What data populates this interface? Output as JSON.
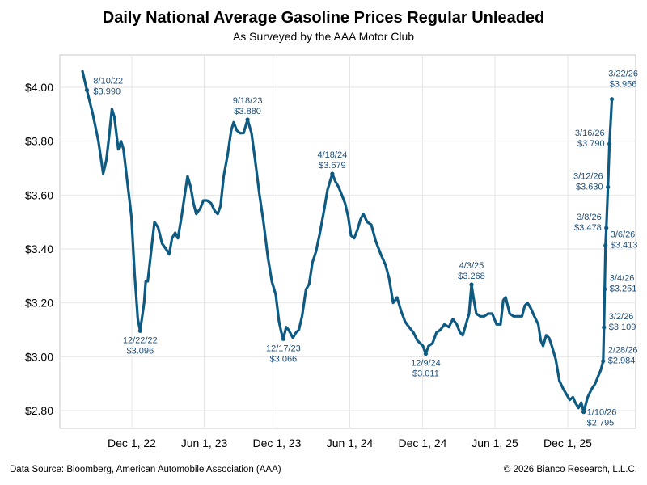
{
  "chart_data": {
    "type": "line",
    "title": "Daily National Average Gasoline Prices Regular Unleaded",
    "subtitle": "As Surveyed by the AAA Motor Club",
    "xlabel": "",
    "ylabel": "",
    "ylim": [
      2.75,
      4.1
    ],
    "grid": true,
    "legend": "none",
    "line_color": "#0d5a82",
    "annotation_color": "#1f4e79",
    "y_ticks": [
      {
        "value": 2.8,
        "label": "$2.80"
      },
      {
        "value": 3.0,
        "label": "$3.00"
      },
      {
        "value": 3.2,
        "label": "$3.20"
      },
      {
        "value": 3.4,
        "label": "$3.40"
      },
      {
        "value": 3.6,
        "label": "$3.60"
      },
      {
        "value": 3.8,
        "label": "$3.80"
      },
      {
        "value": 4.0,
        "label": "$4.00"
      }
    ],
    "x_ticks": [
      {
        "date": "2022-12-01",
        "label": "Dec 1, 22"
      },
      {
        "date": "2023-06-01",
        "label": "Jun 1, 23"
      },
      {
        "date": "2023-12-01",
        "label": "Dec 1, 23"
      },
      {
        "date": "2024-06-01",
        "label": "Jun 1, 24"
      },
      {
        "date": "2024-12-01",
        "label": "Dec 1, 24"
      },
      {
        "date": "2025-06-01",
        "label": "Jun 1, 25"
      },
      {
        "date": "2025-12-01",
        "label": "Dec 1, 25"
      }
    ],
    "series": [
      {
        "points": [
          [
            "2022-07-30",
            4.06
          ],
          [
            "2022-08-10",
            3.99
          ],
          [
            "2022-08-25",
            3.9
          ],
          [
            "2022-09-08",
            3.8
          ],
          [
            "2022-09-20",
            3.68
          ],
          [
            "2022-09-28",
            3.73
          ],
          [
            "2022-10-05",
            3.82
          ],
          [
            "2022-10-12",
            3.92
          ],
          [
            "2022-10-18",
            3.89
          ],
          [
            "2022-10-28",
            3.77
          ],
          [
            "2022-11-04",
            3.8
          ],
          [
            "2022-11-10",
            3.77
          ],
          [
            "2022-11-22",
            3.62
          ],
          [
            "2022-11-30",
            3.52
          ],
          [
            "2022-12-08",
            3.31
          ],
          [
            "2022-12-16",
            3.14
          ],
          [
            "2022-12-22",
            3.096
          ],
          [
            "2023-01-01",
            3.2
          ],
          [
            "2023-01-05",
            3.28
          ],
          [
            "2023-01-10",
            3.28
          ],
          [
            "2023-01-20",
            3.41
          ],
          [
            "2023-01-27",
            3.5
          ],
          [
            "2023-02-05",
            3.48
          ],
          [
            "2023-02-15",
            3.42
          ],
          [
            "2023-02-25",
            3.4
          ],
          [
            "2023-03-05",
            3.38
          ],
          [
            "2023-03-12",
            3.44
          ],
          [
            "2023-03-20",
            3.46
          ],
          [
            "2023-03-27",
            3.44
          ],
          [
            "2023-04-05",
            3.52
          ],
          [
            "2023-04-13",
            3.6
          ],
          [
            "2023-04-20",
            3.67
          ],
          [
            "2023-04-28",
            3.63
          ],
          [
            "2023-05-05",
            3.57
          ],
          [
            "2023-05-12",
            3.53
          ],
          [
            "2023-05-22",
            3.55
          ],
          [
            "2023-05-30",
            3.58
          ],
          [
            "2023-06-08",
            3.58
          ],
          [
            "2023-06-18",
            3.57
          ],
          [
            "2023-06-28",
            3.54
          ],
          [
            "2023-07-05",
            3.53
          ],
          [
            "2023-07-12",
            3.56
          ],
          [
            "2023-07-20",
            3.67
          ],
          [
            "2023-07-30",
            3.75
          ],
          [
            "2023-08-08",
            3.84
          ],
          [
            "2023-08-14",
            3.87
          ],
          [
            "2023-08-22",
            3.84
          ],
          [
            "2023-08-30",
            3.83
          ],
          [
            "2023-09-08",
            3.83
          ],
          [
            "2023-09-18",
            3.88
          ],
          [
            "2023-09-28",
            3.83
          ],
          [
            "2023-10-08",
            3.72
          ],
          [
            "2023-10-18",
            3.6
          ],
          [
            "2023-10-28",
            3.5
          ],
          [
            "2023-11-08",
            3.37
          ],
          [
            "2023-11-18",
            3.28
          ],
          [
            "2023-11-28",
            3.23
          ],
          [
            "2023-12-06",
            3.13
          ],
          [
            "2023-12-12",
            3.09
          ],
          [
            "2023-12-17",
            3.066
          ],
          [
            "2023-12-24",
            3.11
          ],
          [
            "2023-12-30",
            3.1
          ],
          [
            "2024-01-10",
            3.07
          ],
          [
            "2024-01-18",
            3.09
          ],
          [
            "2024-01-25",
            3.1
          ],
          [
            "2024-02-02",
            3.15
          ],
          [
            "2024-02-12",
            3.25
          ],
          [
            "2024-02-20",
            3.27
          ],
          [
            "2024-02-28",
            3.35
          ],
          [
            "2024-03-08",
            3.39
          ],
          [
            "2024-03-18",
            3.46
          ],
          [
            "2024-03-28",
            3.54
          ],
          [
            "2024-04-06",
            3.62
          ],
          [
            "2024-04-18",
            3.679
          ],
          [
            "2024-04-26",
            3.65
          ],
          [
            "2024-05-04",
            3.63
          ],
          [
            "2024-05-12",
            3.6
          ],
          [
            "2024-05-20",
            3.57
          ],
          [
            "2024-05-28",
            3.52
          ],
          [
            "2024-06-04",
            3.45
          ],
          [
            "2024-06-12",
            3.44
          ],
          [
            "2024-06-20",
            3.47
          ],
          [
            "2024-06-28",
            3.51
          ],
          [
            "2024-07-05",
            3.53
          ],
          [
            "2024-07-15",
            3.5
          ],
          [
            "2024-07-25",
            3.49
          ],
          [
            "2024-08-05",
            3.43
          ],
          [
            "2024-08-18",
            3.38
          ],
          [
            "2024-08-30",
            3.34
          ],
          [
            "2024-09-08",
            3.29
          ],
          [
            "2024-09-18",
            3.2
          ],
          [
            "2024-09-28",
            3.22
          ],
          [
            "2024-10-08",
            3.17
          ],
          [
            "2024-10-18",
            3.13
          ],
          [
            "2024-10-28",
            3.11
          ],
          [
            "2024-11-08",
            3.09
          ],
          [
            "2024-11-18",
            3.06
          ],
          [
            "2024-11-25",
            3.05
          ],
          [
            "2024-12-02",
            3.04
          ],
          [
            "2024-12-09",
            3.011
          ],
          [
            "2024-12-16",
            3.04
          ],
          [
            "2024-12-26",
            3.05
          ],
          [
            "2025-01-05",
            3.09
          ],
          [
            "2025-01-15",
            3.1
          ],
          [
            "2025-01-25",
            3.12
          ],
          [
            "2025-02-05",
            3.11
          ],
          [
            "2025-02-15",
            3.14
          ],
          [
            "2025-02-25",
            3.12
          ],
          [
            "2025-03-05",
            3.09
          ],
          [
            "2025-03-12",
            3.08
          ],
          [
            "2025-03-20",
            3.12
          ],
          [
            "2025-03-28",
            3.16
          ],
          [
            "2025-04-03",
            3.268
          ],
          [
            "2025-04-08",
            3.22
          ],
          [
            "2025-04-15",
            3.16
          ],
          [
            "2025-04-25",
            3.15
          ],
          [
            "2025-05-05",
            3.15
          ],
          [
            "2025-05-15",
            3.16
          ],
          [
            "2025-05-25",
            3.16
          ],
          [
            "2025-06-05",
            3.12
          ],
          [
            "2025-06-15",
            3.12
          ],
          [
            "2025-06-22",
            3.21
          ],
          [
            "2025-06-28",
            3.22
          ],
          [
            "2025-07-08",
            3.16
          ],
          [
            "2025-07-18",
            3.15
          ],
          [
            "2025-07-28",
            3.15
          ],
          [
            "2025-08-08",
            3.15
          ],
          [
            "2025-08-15",
            3.19
          ],
          [
            "2025-08-22",
            3.2
          ],
          [
            "2025-08-30",
            3.18
          ],
          [
            "2025-09-08",
            3.15
          ],
          [
            "2025-09-18",
            3.12
          ],
          [
            "2025-09-24",
            3.06
          ],
          [
            "2025-09-30",
            3.04
          ],
          [
            "2025-10-08",
            3.08
          ],
          [
            "2025-10-15",
            3.07
          ],
          [
            "2025-10-22",
            3.04
          ],
          [
            "2025-11-01",
            2.99
          ],
          [
            "2025-11-10",
            2.91
          ],
          [
            "2025-11-20",
            2.88
          ],
          [
            "2025-11-28",
            2.86
          ],
          [
            "2025-12-06",
            2.84
          ],
          [
            "2025-12-14",
            2.85
          ],
          [
            "2025-12-20",
            2.83
          ],
          [
            "2025-12-28",
            2.81
          ],
          [
            "2026-01-04",
            2.83
          ],
          [
            "2026-01-10",
            2.795
          ],
          [
            "2026-01-20",
            2.85
          ],
          [
            "2026-01-30",
            2.88
          ],
          [
            "2026-02-08",
            2.9
          ],
          [
            "2026-02-16",
            2.93
          ],
          [
            "2026-02-22",
            2.95
          ],
          [
            "2026-02-28",
            2.984
          ],
          [
            "2026-03-02",
            3.109
          ],
          [
            "2026-03-04",
            3.251
          ],
          [
            "2026-03-06",
            3.413
          ],
          [
            "2026-03-08",
            3.478
          ],
          [
            "2026-03-12",
            3.63
          ],
          [
            "2026-03-16",
            3.79
          ],
          [
            "2026-03-22",
            3.956
          ]
        ]
      }
    ],
    "annotations": [
      {
        "date": "2022-08-10",
        "value": 3.99,
        "label_date": "8/10/22",
        "label_value": "$3.990",
        "pos": "right"
      },
      {
        "date": "2022-12-22",
        "value": 3.096,
        "label_date": "12/22/22",
        "label_value": "$3.096",
        "pos": "below"
      },
      {
        "date": "2023-09-18",
        "value": 3.88,
        "label_date": "9/18/23",
        "label_value": "$3.880",
        "pos": "above"
      },
      {
        "date": "2023-12-17",
        "value": 3.066,
        "label_date": "12/17/23",
        "label_value": "$3.066",
        "pos": "below"
      },
      {
        "date": "2024-04-18",
        "value": 3.679,
        "label_date": "4/18/24",
        "label_value": "$3.679",
        "pos": "above"
      },
      {
        "date": "2024-12-09",
        "value": 3.011,
        "label_date": "12/9/24",
        "label_value": "$3.011",
        "pos": "below"
      },
      {
        "date": "2025-04-03",
        "value": 3.268,
        "label_date": "4/3/25",
        "label_value": "$3.268",
        "pos": "above"
      },
      {
        "date": "2026-01-10",
        "value": 2.795,
        "label_date": "1/10/26",
        "label_value": "$2.795",
        "pos": "belowright"
      },
      {
        "date": "2026-02-28",
        "value": 2.984,
        "label_date": "2/28/26",
        "label_value": "$2.984",
        "pos": "right"
      },
      {
        "date": "2026-03-02",
        "value": 3.109,
        "label_date": "3/2/26",
        "label_value": "$3.109",
        "pos": "right"
      },
      {
        "date": "2026-03-04",
        "value": 3.251,
        "label_date": "3/4/26",
        "label_value": "$3.251",
        "pos": "right"
      },
      {
        "date": "2026-03-06",
        "value": 3.413,
        "label_date": "3/6/26",
        "label_value": "$3.413",
        "pos": "right"
      },
      {
        "date": "2026-03-08",
        "value": 3.478,
        "label_date": "3/8/26",
        "label_value": "$3.478",
        "pos": "left"
      },
      {
        "date": "2026-03-12",
        "value": 3.63,
        "label_date": "3/12/26",
        "label_value": "$3.630",
        "pos": "left"
      },
      {
        "date": "2026-03-16",
        "value": 3.79,
        "label_date": "3/16/26",
        "label_value": "$3.790",
        "pos": "left"
      },
      {
        "date": "2026-03-22",
        "value": 3.956,
        "label_date": "3/22/26",
        "label_value": "$3.956",
        "pos": "above"
      }
    ]
  },
  "footer": {
    "source": "Data Source: Bloomberg, American Automobile Association (AAA)",
    "copyright": "© 2026 Bianco Research, L.L.C."
  }
}
